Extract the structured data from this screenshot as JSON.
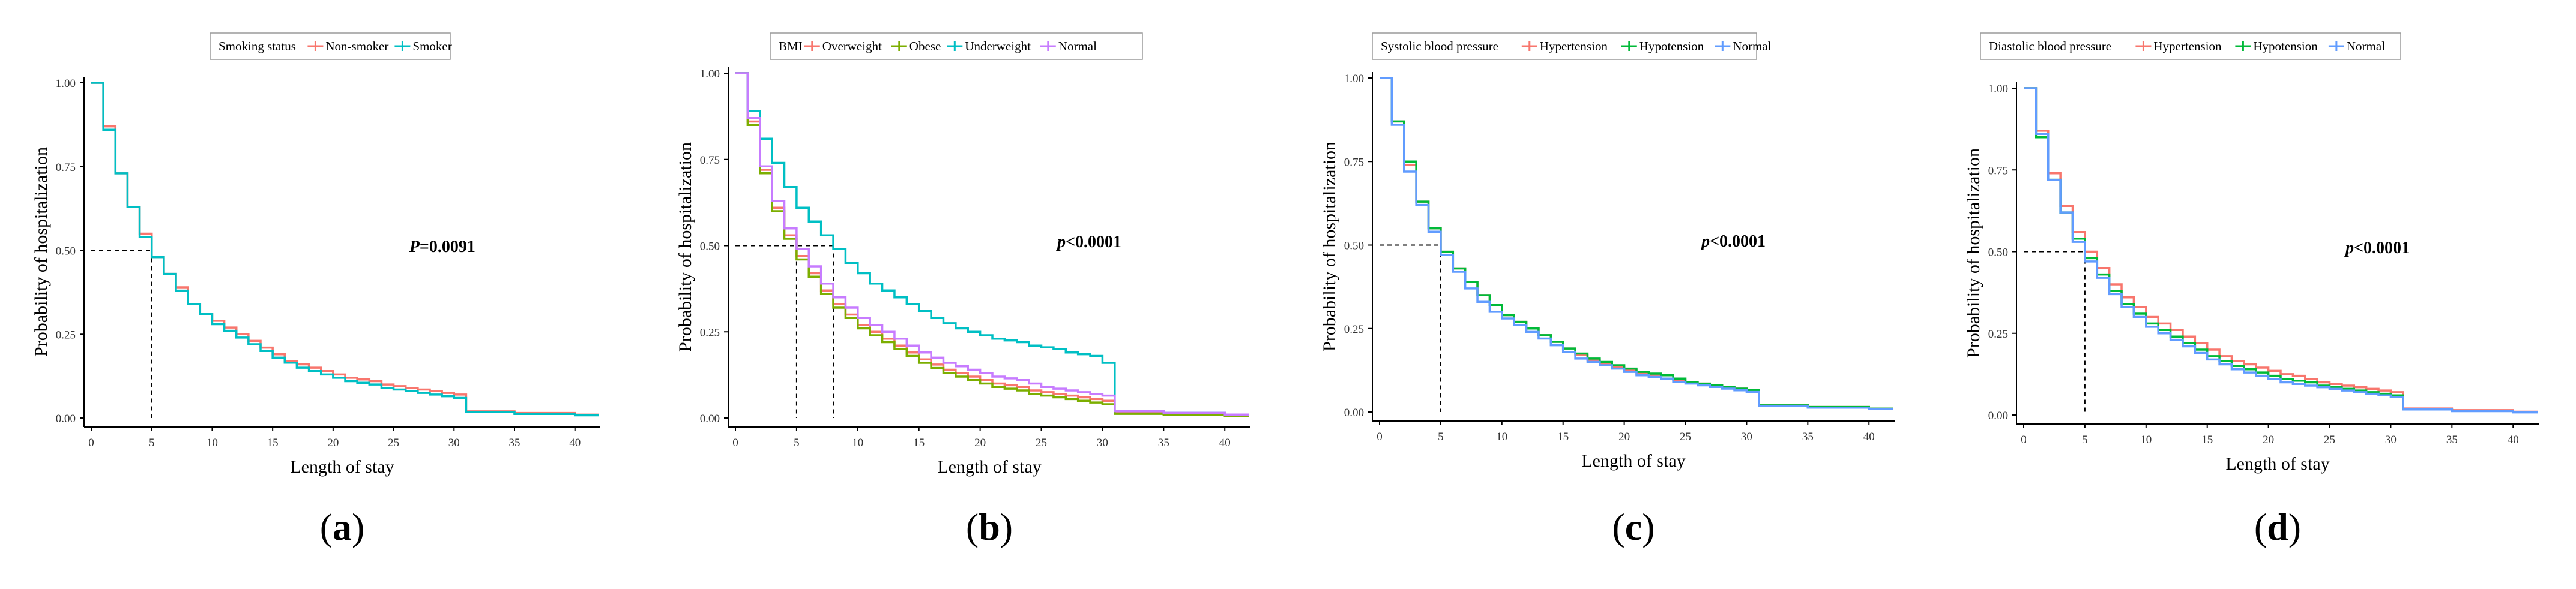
{
  "chart_data": [
    {
      "type": "line",
      "panel_label": "a",
      "legend_title": "Smoking status",
      "xlabel": "Length of stay",
      "ylabel": "Probability of hospitalization",
      "xlim": [
        0,
        42
      ],
      "ylim": [
        0,
        1
      ],
      "xticks": [
        "0",
        "5",
        "10",
        "15",
        "20",
        "25",
        "30",
        "35",
        "40"
      ],
      "yticks": [
        "0.00",
        "0.25",
        "0.50",
        "0.75",
        "1.00"
      ],
      "p_value": "=0.0091",
      "p_symbol": "P",
      "median_lines": [
        5
      ],
      "series": [
        {
          "name": "Non-smoker",
          "color": "#f8766d",
          "x": [
            0,
            1,
            2,
            3,
            4,
            5,
            6,
            7,
            8,
            9,
            10,
            11,
            12,
            13,
            14,
            15,
            16,
            17,
            18,
            19,
            20,
            21,
            22,
            23,
            24,
            25,
            26,
            27,
            28,
            29,
            30,
            31,
            35,
            40,
            42
          ],
          "y": [
            1.0,
            0.87,
            0.73,
            0.63,
            0.55,
            0.48,
            0.43,
            0.39,
            0.34,
            0.31,
            0.29,
            0.27,
            0.25,
            0.23,
            0.21,
            0.19,
            0.17,
            0.16,
            0.15,
            0.14,
            0.13,
            0.12,
            0.115,
            0.11,
            0.1,
            0.095,
            0.09,
            0.085,
            0.08,
            0.075,
            0.07,
            0.02,
            0.015,
            0.01,
            0.01
          ]
        },
        {
          "name": "Smoker",
          "color": "#00bfc4",
          "x": [
            0,
            1,
            2,
            3,
            4,
            5,
            6,
            7,
            8,
            9,
            10,
            11,
            12,
            13,
            14,
            15,
            16,
            17,
            18,
            19,
            20,
            21,
            22,
            23,
            24,
            25,
            26,
            27,
            28,
            29,
            30,
            31,
            35,
            40,
            42
          ],
          "y": [
            1.0,
            0.86,
            0.73,
            0.63,
            0.54,
            0.48,
            0.43,
            0.38,
            0.34,
            0.31,
            0.28,
            0.26,
            0.24,
            0.22,
            0.2,
            0.18,
            0.165,
            0.15,
            0.14,
            0.13,
            0.12,
            0.11,
            0.105,
            0.1,
            0.09,
            0.085,
            0.08,
            0.075,
            0.07,
            0.065,
            0.06,
            0.018,
            0.012,
            0.008,
            0.008
          ]
        }
      ]
    },
    {
      "type": "line",
      "panel_label": "b",
      "legend_title": "BMI",
      "xlabel": "Length of stay",
      "ylabel": "Probability of hospitalization",
      "xlim": [
        0,
        42
      ],
      "ylim": [
        0,
        1
      ],
      "xticks": [
        "0",
        "5",
        "10",
        "15",
        "20",
        "25",
        "30",
        "35",
        "40"
      ],
      "yticks": [
        "0.00",
        "0.25",
        "0.50",
        "0.75",
        "1.00"
      ],
      "p_value": "<0.0001",
      "p_symbol": "p",
      "median_lines": [
        5,
        8
      ],
      "series": [
        {
          "name": "Overweight",
          "color": "#f8766d",
          "x": [
            0,
            1,
            2,
            3,
            4,
            5,
            6,
            7,
            8,
            9,
            10,
            11,
            12,
            13,
            14,
            15,
            16,
            17,
            18,
            19,
            20,
            21,
            22,
            23,
            24,
            25,
            26,
            27,
            28,
            29,
            30,
            31,
            35,
            40,
            42
          ],
          "y": [
            1.0,
            0.86,
            0.72,
            0.61,
            0.53,
            0.47,
            0.42,
            0.37,
            0.33,
            0.3,
            0.27,
            0.25,
            0.23,
            0.21,
            0.19,
            0.17,
            0.155,
            0.14,
            0.13,
            0.12,
            0.11,
            0.1,
            0.095,
            0.09,
            0.08,
            0.075,
            0.07,
            0.065,
            0.06,
            0.055,
            0.05,
            0.015,
            0.012,
            0.008,
            0.008
          ]
        },
        {
          "name": "Obese",
          "color": "#7cae00",
          "x": [
            0,
            1,
            2,
            3,
            4,
            5,
            6,
            7,
            8,
            9,
            10,
            11,
            12,
            13,
            14,
            15,
            16,
            17,
            18,
            19,
            20,
            21,
            22,
            23,
            24,
            25,
            26,
            27,
            28,
            29,
            30,
            31,
            35,
            40,
            42
          ],
          "y": [
            1.0,
            0.85,
            0.71,
            0.6,
            0.52,
            0.46,
            0.41,
            0.36,
            0.32,
            0.29,
            0.26,
            0.24,
            0.22,
            0.2,
            0.18,
            0.16,
            0.145,
            0.13,
            0.12,
            0.11,
            0.1,
            0.09,
            0.085,
            0.08,
            0.07,
            0.065,
            0.06,
            0.055,
            0.05,
            0.045,
            0.04,
            0.012,
            0.01,
            0.006,
            0.006
          ]
        },
        {
          "name": "Underweight",
          "color": "#00bfc4",
          "x": [
            0,
            1,
            2,
            3,
            4,
            5,
            6,
            7,
            8,
            9,
            10,
            11,
            12,
            13,
            14,
            15,
            16,
            17,
            18,
            19,
            20,
            21,
            22,
            23,
            24,
            25,
            26,
            27,
            28,
            29,
            30,
            31,
            35,
            40,
            42
          ],
          "y": [
            1.0,
            0.89,
            0.81,
            0.74,
            0.67,
            0.61,
            0.57,
            0.53,
            0.49,
            0.45,
            0.42,
            0.39,
            0.37,
            0.35,
            0.33,
            0.31,
            0.29,
            0.275,
            0.26,
            0.25,
            0.24,
            0.23,
            0.225,
            0.22,
            0.21,
            0.205,
            0.2,
            0.19,
            0.185,
            0.18,
            0.16,
            0.02,
            0.015,
            0.01,
            0.01
          ]
        },
        {
          "name": "Normal",
          "color": "#c77cff",
          "x": [
            0,
            1,
            2,
            3,
            4,
            5,
            6,
            7,
            8,
            9,
            10,
            11,
            12,
            13,
            14,
            15,
            16,
            17,
            18,
            19,
            20,
            21,
            22,
            23,
            24,
            25,
            26,
            27,
            28,
            29,
            30,
            31,
            35,
            40,
            42
          ],
          "y": [
            1.0,
            0.87,
            0.73,
            0.63,
            0.55,
            0.49,
            0.44,
            0.39,
            0.35,
            0.32,
            0.29,
            0.27,
            0.25,
            0.23,
            0.21,
            0.19,
            0.175,
            0.16,
            0.15,
            0.14,
            0.13,
            0.12,
            0.115,
            0.11,
            0.1,
            0.09,
            0.085,
            0.08,
            0.075,
            0.07,
            0.065,
            0.02,
            0.015,
            0.01,
            0.01
          ]
        }
      ]
    },
    {
      "type": "line",
      "panel_label": "c",
      "legend_title": "Systolic blood pressure",
      "xlabel": "Length of stay",
      "ylabel": "Probability of hospitalization",
      "xlim": [
        0,
        42
      ],
      "ylim": [
        0,
        1
      ],
      "xticks": [
        "0",
        "5",
        "10",
        "15",
        "20",
        "25",
        "30",
        "35",
        "40"
      ],
      "yticks": [
        "0.00",
        "0.25",
        "0.50",
        "0.75",
        "1.00"
      ],
      "p_value": "<0.0001",
      "p_symbol": "p",
      "median_lines": [
        5
      ],
      "series": [
        {
          "name": "Hypertension",
          "color": "#f8766d",
          "x": [
            0,
            1,
            2,
            3,
            4,
            5,
            6,
            7,
            8,
            9,
            10,
            11,
            12,
            13,
            14,
            15,
            16,
            17,
            18,
            19,
            20,
            21,
            22,
            23,
            24,
            25,
            26,
            27,
            28,
            29,
            30,
            31,
            35,
            40,
            42
          ],
          "y": [
            1.0,
            0.87,
            0.74,
            0.63,
            0.55,
            0.48,
            0.43,
            0.39,
            0.35,
            0.32,
            0.29,
            0.27,
            0.25,
            0.23,
            0.21,
            0.19,
            0.17,
            0.155,
            0.145,
            0.135,
            0.125,
            0.115,
            0.11,
            0.1,
            0.095,
            0.09,
            0.085,
            0.08,
            0.075,
            0.07,
            0.065,
            0.02,
            0.015,
            0.01,
            0.01
          ]
        },
        {
          "name": "Hypotension",
          "color": "#00ba38",
          "x": [
            0,
            1,
            2,
            3,
            4,
            5,
            6,
            7,
            8,
            9,
            10,
            11,
            12,
            13,
            14,
            15,
            16,
            17,
            18,
            19,
            20,
            21,
            22,
            23,
            24,
            25,
            26,
            27,
            28,
            29,
            30,
            31,
            35,
            40,
            42
          ],
          "y": [
            1.0,
            0.87,
            0.75,
            0.63,
            0.55,
            0.48,
            0.43,
            0.39,
            0.35,
            0.32,
            0.29,
            0.27,
            0.25,
            0.23,
            0.21,
            0.19,
            0.175,
            0.16,
            0.15,
            0.14,
            0.13,
            0.12,
            0.115,
            0.11,
            0.1,
            0.09,
            0.085,
            0.08,
            0.075,
            0.07,
            0.065,
            0.02,
            0.015,
            0.01,
            0.01
          ]
        },
        {
          "name": "Normal",
          "color": "#619cff",
          "x": [
            0,
            1,
            2,
            3,
            4,
            5,
            6,
            7,
            8,
            9,
            10,
            11,
            12,
            13,
            14,
            15,
            16,
            17,
            18,
            19,
            20,
            21,
            22,
            23,
            24,
            25,
            26,
            27,
            28,
            29,
            30,
            31,
            35,
            40,
            42
          ],
          "y": [
            1.0,
            0.86,
            0.72,
            0.62,
            0.54,
            0.47,
            0.42,
            0.37,
            0.33,
            0.3,
            0.28,
            0.26,
            0.24,
            0.22,
            0.2,
            0.18,
            0.16,
            0.15,
            0.14,
            0.13,
            0.12,
            0.11,
            0.105,
            0.1,
            0.09,
            0.085,
            0.08,
            0.075,
            0.07,
            0.065,
            0.06,
            0.018,
            0.013,
            0.009,
            0.009
          ]
        }
      ]
    },
    {
      "type": "line",
      "panel_label": "d",
      "legend_title": "Diastolic blood pressure",
      "xlabel": "Length of stay",
      "ylabel": "Probability of hospitalization",
      "xlim": [
        0,
        42
      ],
      "ylim": [
        0,
        1
      ],
      "xticks": [
        "0",
        "5",
        "10",
        "15",
        "20",
        "25",
        "30",
        "35",
        "40"
      ],
      "yticks": [
        "0.00",
        "0.25",
        "0.50",
        "0.75",
        "1.00"
      ],
      "p_value": "<0.0001",
      "p_symbol": "p",
      "median_lines": [
        5
      ],
      "series": [
        {
          "name": "Hypertension",
          "color": "#f8766d",
          "x": [
            0,
            1,
            2,
            3,
            4,
            5,
            6,
            7,
            8,
            9,
            10,
            11,
            12,
            13,
            14,
            15,
            16,
            17,
            18,
            19,
            20,
            21,
            22,
            23,
            24,
            25,
            26,
            27,
            28,
            29,
            30,
            31,
            35,
            40,
            42
          ],
          "y": [
            1.0,
            0.87,
            0.74,
            0.64,
            0.56,
            0.5,
            0.45,
            0.4,
            0.36,
            0.33,
            0.3,
            0.28,
            0.26,
            0.24,
            0.22,
            0.2,
            0.18,
            0.165,
            0.155,
            0.145,
            0.135,
            0.125,
            0.12,
            0.11,
            0.1,
            0.095,
            0.09,
            0.085,
            0.08,
            0.075,
            0.07,
            0.02,
            0.015,
            0.01,
            0.01
          ]
        },
        {
          "name": "Hypotension",
          "color": "#00ba38",
          "x": [
            0,
            1,
            2,
            3,
            4,
            5,
            6,
            7,
            8,
            9,
            10,
            11,
            12,
            13,
            14,
            15,
            16,
            17,
            18,
            19,
            20,
            21,
            22,
            23,
            24,
            25,
            26,
            27,
            28,
            29,
            30,
            31,
            35,
            40,
            42
          ],
          "y": [
            1.0,
            0.85,
            0.72,
            0.62,
            0.54,
            0.48,
            0.43,
            0.38,
            0.34,
            0.31,
            0.28,
            0.26,
            0.24,
            0.22,
            0.2,
            0.18,
            0.165,
            0.15,
            0.14,
            0.13,
            0.12,
            0.11,
            0.105,
            0.1,
            0.09,
            0.085,
            0.08,
            0.075,
            0.07,
            0.065,
            0.06,
            0.018,
            0.013,
            0.009,
            0.009
          ]
        },
        {
          "name": "Normal",
          "color": "#619cff",
          "x": [
            0,
            1,
            2,
            3,
            4,
            5,
            6,
            7,
            8,
            9,
            10,
            11,
            12,
            13,
            14,
            15,
            16,
            17,
            18,
            19,
            20,
            21,
            22,
            23,
            24,
            25,
            26,
            27,
            28,
            29,
            30,
            31,
            35,
            40,
            42
          ],
          "y": [
            1.0,
            0.86,
            0.72,
            0.62,
            0.53,
            0.47,
            0.42,
            0.37,
            0.33,
            0.3,
            0.27,
            0.25,
            0.23,
            0.21,
            0.19,
            0.17,
            0.155,
            0.14,
            0.13,
            0.12,
            0.11,
            0.1,
            0.095,
            0.09,
            0.085,
            0.08,
            0.075,
            0.07,
            0.065,
            0.06,
            0.055,
            0.017,
            0.012,
            0.008,
            0.008
          ]
        }
      ]
    }
  ]
}
